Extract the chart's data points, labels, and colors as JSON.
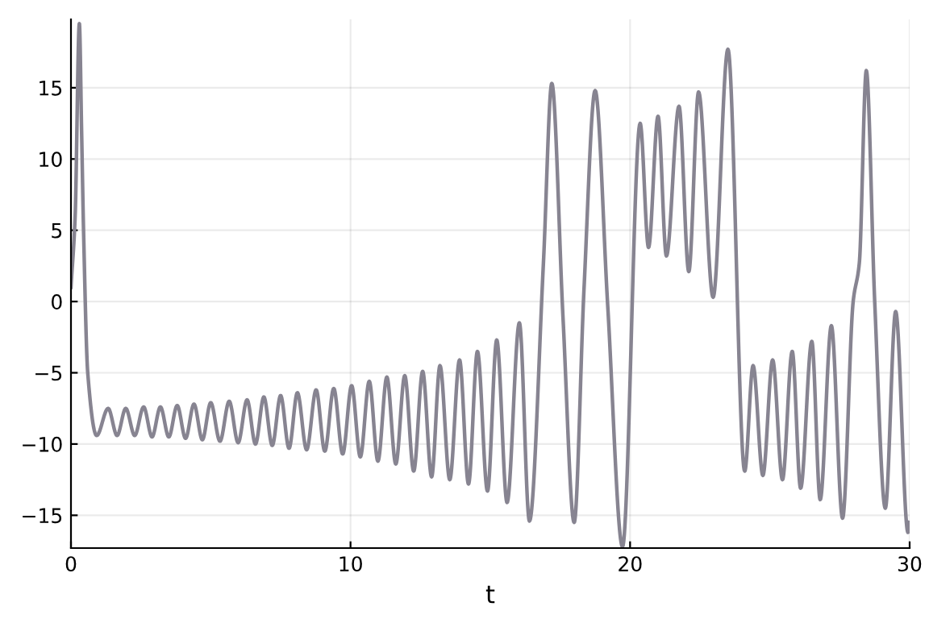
{
  "chart_data": {
    "type": "line",
    "xlabel": "t",
    "xlim": [
      0,
      30
    ],
    "ylim": [
      -17.3,
      19.8
    ],
    "xticks": [
      0,
      10,
      20,
      30
    ],
    "yticks": [
      -15,
      -10,
      -5,
      0,
      5,
      10,
      15
    ],
    "grid": true,
    "line_style": "solid",
    "marker": "none",
    "series": [
      {
        "color": "#878491",
        "x": [
          0,
          0.15,
          0.3,
          0.38,
          0.45,
          0.6,
          0.92,
          1.33,
          1.65,
          1.96,
          2.28,
          2.6,
          2.9,
          3.2,
          3.5,
          3.8,
          4.1,
          4.4,
          4.7,
          5.0,
          5.33,
          5.66,
          5.98,
          6.3,
          6.6,
          6.9,
          7.2,
          7.5,
          7.8,
          8.1,
          8.43,
          8.77,
          9.08,
          9.4,
          9.72,
          10.04,
          10.35,
          10.67,
          10.98,
          11.3,
          11.62,
          11.94,
          12.26,
          12.58,
          12.9,
          13.2,
          13.55,
          13.9,
          14.22,
          14.54,
          14.9,
          15.23,
          15.6,
          16.04,
          16.4,
          16.9,
          17.2,
          17.6,
          18.0,
          18.35,
          18.75,
          19.2,
          19.73,
          20.36,
          20.66,
          21.0,
          21.3,
          21.75,
          22.1,
          22.45,
          22.97,
          23.5,
          24.1,
          24.4,
          24.75,
          25.1,
          25.45,
          25.8,
          26.1,
          26.5,
          26.8,
          27.2,
          27.6,
          27.98,
          28.2,
          28.45,
          28.75,
          29.13,
          29.5,
          29.94,
          30
        ],
        "values": [
          1,
          6,
          19.5,
          12,
          5,
          -5,
          -9.4,
          -7.5,
          -9.4,
          -7.5,
          -9.4,
          -7.4,
          -9.5,
          -7.4,
          -9.5,
          -7.3,
          -9.6,
          -7.2,
          -9.7,
          -7.1,
          -9.8,
          -7.0,
          -9.9,
          -6.9,
          -10.0,
          -6.7,
          -10.1,
          -6.6,
          -10.3,
          -6.4,
          -10.4,
          -6.2,
          -10.5,
          -6.1,
          -10.7,
          -5.9,
          -10.9,
          -5.6,
          -11.2,
          -5.3,
          -11.4,
          -5.2,
          -11.9,
          -4.9,
          -12.3,
          -4.5,
          -12.5,
          -4.1,
          -12.8,
          -3.5,
          -13.3,
          -2.7,
          -14.1,
          -1.5,
          -15.4,
          2.7,
          15.3,
          -1.1,
          -15.5,
          0.8,
          14.8,
          -0.3,
          -17.2,
          12.5,
          3.8,
          13.0,
          3.2,
          13.7,
          2.1,
          14.7,
          0.3,
          17.7,
          -11.9,
          -4.5,
          -12.2,
          -4.1,
          -12.5,
          -3.5,
          -13.1,
          -2.8,
          -13.9,
          -1.7,
          -15.2,
          0,
          2.7,
          16.2,
          0,
          -14.5,
          -0.7,
          -16.2,
          -15.5
        ]
      }
    ]
  }
}
